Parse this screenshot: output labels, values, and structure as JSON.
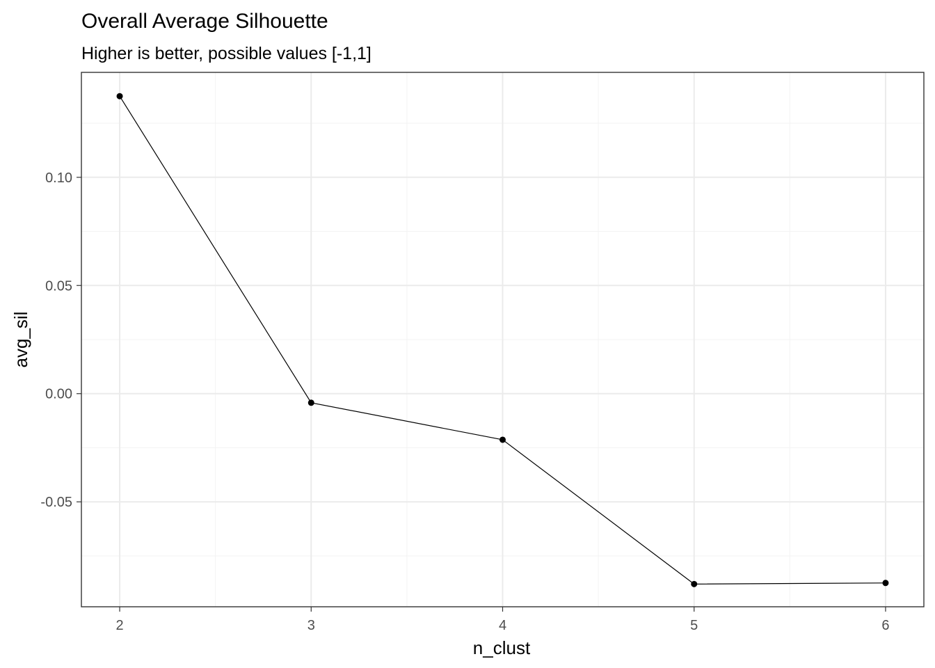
{
  "chart_data": {
    "type": "line",
    "title": "Overall Average Silhouette",
    "subtitle": "Higher is better, possible values [-1,1]",
    "xlabel": "n_clust",
    "ylabel": "avg_sil",
    "x": [
      2,
      3,
      4,
      5,
      6
    ],
    "series": [
      {
        "values": [
          0.1375,
          -0.0042,
          -0.0213,
          -0.088,
          -0.0875
        ]
      }
    ],
    "xlim": [
      1.8,
      6.2
    ],
    "ylim": [
      -0.0985,
      0.1485
    ],
    "x_ticks": [
      2,
      3,
      4,
      5,
      6
    ],
    "x_tick_labels": [
      "2",
      "3",
      "4",
      "5",
      "6"
    ],
    "y_ticks": [
      -0.05,
      0.0,
      0.05,
      0.1
    ],
    "y_tick_labels": [
      "-0.05",
      "0.00",
      "0.05",
      "0.10"
    ],
    "grid": true,
    "legend": "none",
    "colors": {
      "line": "#000000",
      "point": "#000000",
      "grid_major": "#ebebeb",
      "grid_minor": "#f3f3f3",
      "panel_border": "#333333",
      "tick_text": "#4d4d4d"
    }
  }
}
